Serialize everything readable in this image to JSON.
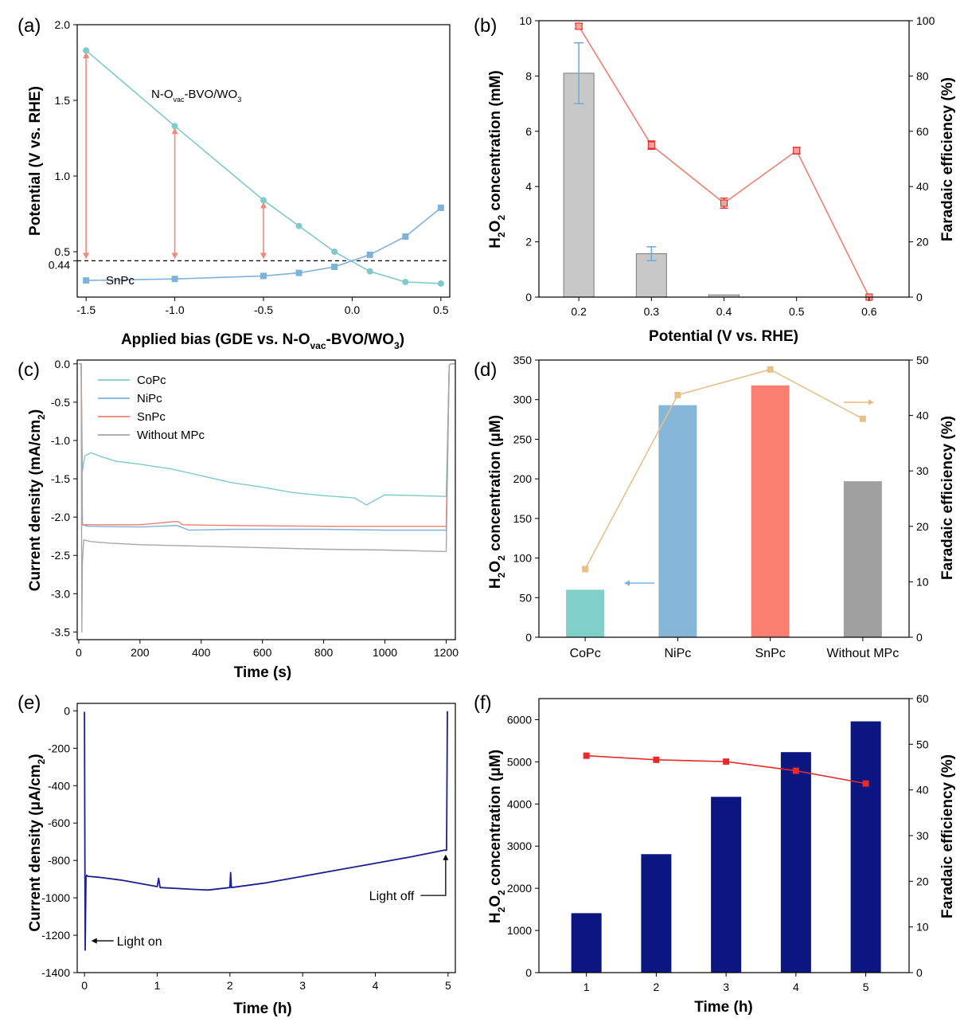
{
  "chart_data": [
    {
      "panel": "(a)",
      "type": "line",
      "xlabel_parts": [
        "Applied bias (GDE vs. N-O",
        "vac",
        "-BVO/WO",
        "3",
        ")"
      ],
      "ylabel": "Potential (V vs. RHE)",
      "xlim": [
        -1.55,
        0.55
      ],
      "ylim": [
        0.2,
        2.0
      ],
      "x_ticks": [
        -1.5,
        -1.0,
        -0.5,
        0.0,
        0.5
      ],
      "x_tick_labels": [
        "-1.5",
        "-1.0",
        "-0.5",
        "0.0",
        "0.5"
      ],
      "y_ticks": [
        0.5,
        1.0,
        1.5,
        2.0
      ],
      "y_tick_labels": [
        "0.5",
        "1.0",
        "1.5",
        "2.0"
      ],
      "extra_y_tick": {
        "value": 0.44,
        "label": "0.44"
      },
      "reference_line": {
        "y": 0.44,
        "style": "dashed"
      },
      "series": [
        {
          "name_parts": [
            "N-O",
            "vac",
            "-BVO/WO",
            "3"
          ],
          "marker": "circle",
          "color": "#7ecbc9",
          "x": [
            -1.5,
            -1.0,
            -0.5,
            -0.3,
            -0.1,
            0.1,
            0.3,
            0.5
          ],
          "y": [
            1.83,
            1.33,
            0.84,
            0.67,
            0.5,
            0.37,
            0.3,
            0.29
          ]
        },
        {
          "name": "SnPc",
          "marker": "square",
          "color": "#7fb2d9",
          "x": [
            -1.5,
            -1.0,
            -0.5,
            -0.3,
            -0.1,
            0.1,
            0.3,
            0.5
          ],
          "y": [
            0.31,
            0.32,
            0.34,
            0.36,
            0.4,
            0.48,
            0.6,
            0.79
          ]
        }
      ],
      "arrows": [
        {
          "x": -1.5,
          "y_from": 0.44,
          "y_to": 1.83
        },
        {
          "x": -1.0,
          "y_from": 0.44,
          "y_to": 1.33
        },
        {
          "x": -0.5,
          "y_from": 0.44,
          "y_to": 0.84
        }
      ],
      "arrow_color": "#f28a7c"
    },
    {
      "panel": "(b)",
      "type": "bar",
      "xlabel": "Potential (V vs. RHE)",
      "ylabel_parts": [
        "H",
        "2",
        "O",
        "2",
        " concentration (mM)"
      ],
      "y2label": "Faradaic efficiency (%)",
      "categories": [
        "0.2",
        "0.3",
        "0.4",
        "0.5",
        "0.6"
      ],
      "ylim": [
        0,
        10
      ],
      "y2lim": [
        0,
        100
      ],
      "y_ticks": [
        0,
        2,
        4,
        6,
        8,
        10
      ],
      "y2_ticks": [
        0,
        20,
        40,
        60,
        80,
        100
      ],
      "bars": {
        "values": [
          8.1,
          1.57,
          0.08,
          0.0,
          0.0
        ],
        "errors": [
          1.1,
          0.25,
          0.0,
          0.0,
          0.0
        ],
        "color": "#c8c8c8",
        "error_color": "#6fa8dc"
      },
      "line": {
        "values": [
          98,
          55,
          34,
          53,
          0
        ],
        "errors": [
          1,
          1.5,
          1.8,
          1.2,
          0
        ],
        "color": "#f07f73"
      }
    },
    {
      "panel": "(c)",
      "type": "line",
      "xlabel": "Time (s)",
      "ylabel_parts": [
        "Current density (mA/cm",
        "2",
        ")"
      ],
      "xlim": [
        -5,
        1230
      ],
      "ylim": [
        -3.6,
        0.05
      ],
      "x_ticks": [
        0,
        200,
        400,
        600,
        800,
        1000,
        1200
      ],
      "y_ticks": [
        0.0,
        -0.5,
        -1.0,
        -1.5,
        -2.0,
        -2.5,
        -3.0,
        -3.5
      ],
      "y_tick_labels": [
        "0.0",
        "-0.5",
        "-1.0",
        "-1.5",
        "-2.0",
        "-2.5",
        "-3.0",
        "-3.5"
      ],
      "legend_position": "top-left",
      "series": [
        {
          "name": "CoPc",
          "color": "#7ecbc9",
          "x": [
            0,
            8,
            12,
            20,
            40,
            80,
            120,
            200,
            300,
            400,
            500,
            600,
            700,
            800,
            900,
            940,
            1000,
            1100,
            1200,
            1210,
            1215,
            1230
          ],
          "y": [
            0,
            0,
            -1.4,
            -1.2,
            -1.16,
            -1.22,
            -1.27,
            -1.31,
            -1.37,
            -1.46,
            -1.55,
            -1.61,
            -1.68,
            -1.72,
            -1.75,
            -1.84,
            -1.71,
            -1.72,
            -1.73,
            -0.02,
            0,
            0
          ]
        },
        {
          "name": "NiPc",
          "color": "#7fb2d9",
          "x": [
            0,
            8,
            12,
            30,
            200,
            320,
            360,
            500,
            800,
            1000,
            1200,
            1210,
            1215,
            1230
          ],
          "y": [
            0,
            0,
            -2.1,
            -2.12,
            -2.13,
            -2.11,
            -2.17,
            -2.16,
            -2.16,
            -2.17,
            -2.17,
            -0.02,
            0,
            0
          ]
        },
        {
          "name": "SnPc",
          "color": "#f07f73",
          "x": [
            0,
            8,
            12,
            30,
            200,
            310,
            325,
            340,
            500,
            800,
            1000,
            1200,
            1210,
            1215,
            1230
          ],
          "y": [
            0,
            0,
            -2.1,
            -2.1,
            -2.1,
            -2.06,
            -2.06,
            -2.1,
            -2.11,
            -2.12,
            -2.12,
            -2.12,
            -0.02,
            0,
            0
          ]
        },
        {
          "name": "Without MPc",
          "color": "#a6a6a6",
          "x": [
            0,
            8,
            10,
            12,
            16,
            20,
            40,
            100,
            200,
            400,
            600,
            800,
            1000,
            1200,
            1210,
            1215,
            1230
          ],
          "y": [
            0,
            0,
            -3.5,
            -2.6,
            -2.3,
            -2.3,
            -2.32,
            -2.34,
            -2.36,
            -2.38,
            -2.4,
            -2.42,
            -2.43,
            -2.45,
            -0.02,
            0,
            0
          ]
        }
      ]
    },
    {
      "panel": "(d)",
      "type": "bar",
      "ylabel_parts": [
        "H",
        "2",
        "O",
        "2",
        " concentration (μM)"
      ],
      "y2label": "Faradaic efficiency (%)",
      "categories": [
        "CoPc",
        "NiPc",
        "SnPc",
        "Without MPc"
      ],
      "ylim": [
        0,
        350
      ],
      "y2lim": [
        0,
        50
      ],
      "y_ticks": [
        0,
        50,
        100,
        150,
        200,
        250,
        300,
        350
      ],
      "y2_ticks": [
        0,
        10,
        20,
        30,
        40,
        50
      ],
      "bars": {
        "values": [
          60,
          293,
          318,
          197
        ],
        "colors": [
          "#80cfc8",
          "#86b6d8",
          "#fb7f70",
          "#a0a0a0"
        ]
      },
      "line": {
        "values": [
          12.3,
          43.7,
          48.3,
          39.4
        ],
        "color": "#e8c08a"
      },
      "axis_arrows": [
        {
          "direction": "left",
          "color": "#7fb2d9",
          "points_to": "left axis"
        },
        {
          "direction": "right",
          "color": "#f5b57a",
          "points_to": "right axis"
        }
      ]
    },
    {
      "panel": "(e)",
      "type": "line",
      "xlabel": "Time (h)",
      "ylabel_parts": [
        "Current density (μA/cm",
        "2",
        ")"
      ],
      "xlim": [
        -0.1,
        5.1
      ],
      "ylim": [
        -1400,
        40
      ],
      "x_ticks": [
        0,
        1,
        2,
        3,
        4,
        5
      ],
      "y_ticks": [
        0,
        -200,
        -400,
        -600,
        -800,
        -1000,
        -1200,
        -1400
      ],
      "series": [
        {
          "name": "current",
          "color": "#1c1f8f",
          "x": [
            0,
            0.01,
            0.02,
            0.03,
            0.05,
            0.2,
            0.5,
            1.0,
            1.02,
            1.04,
            1.5,
            1.7,
            2.0,
            2.01,
            2.02,
            2.5,
            3.0,
            3.5,
            4.0,
            4.5,
            4.95,
            4.98,
            4.99,
            5.0
          ],
          "y": [
            -5,
            -1280,
            -890,
            -880,
            -885,
            -890,
            -905,
            -940,
            -895,
            -945,
            -955,
            -958,
            -945,
            -865,
            -945,
            -920,
            -885,
            -850,
            -815,
            -780,
            -745,
            -745,
            -5,
            -5
          ]
        }
      ],
      "annotations": [
        {
          "text": "Light on",
          "x": 0.05,
          "y": -1230,
          "arrow": "left"
        },
        {
          "text": "Light off",
          "x": 4.6,
          "y": -1000,
          "arrow": "up"
        }
      ]
    },
    {
      "panel": "(f)",
      "type": "bar",
      "xlabel": "Time (h)",
      "ylabel_parts": [
        "H",
        "2",
        "O",
        "2",
        " concentration (μM)"
      ],
      "y2label": "Faradaic efficiency (%)",
      "categories": [
        "1",
        "2",
        "3",
        "4",
        "5"
      ],
      "ylim": [
        0,
        6500
      ],
      "y2lim": [
        0,
        60
      ],
      "y_ticks": [
        0,
        1000,
        2000,
        3000,
        4000,
        5000,
        6000
      ],
      "y2_ticks": [
        0,
        10,
        20,
        30,
        40,
        50,
        60
      ],
      "bars": {
        "values": [
          1410,
          2810,
          4170,
          5230,
          5960
        ],
        "color": "#0b1680"
      },
      "line": {
        "values": [
          47.5,
          46.6,
          46.2,
          44.2,
          41.4
        ],
        "color": "#ea2a2a"
      }
    }
  ]
}
